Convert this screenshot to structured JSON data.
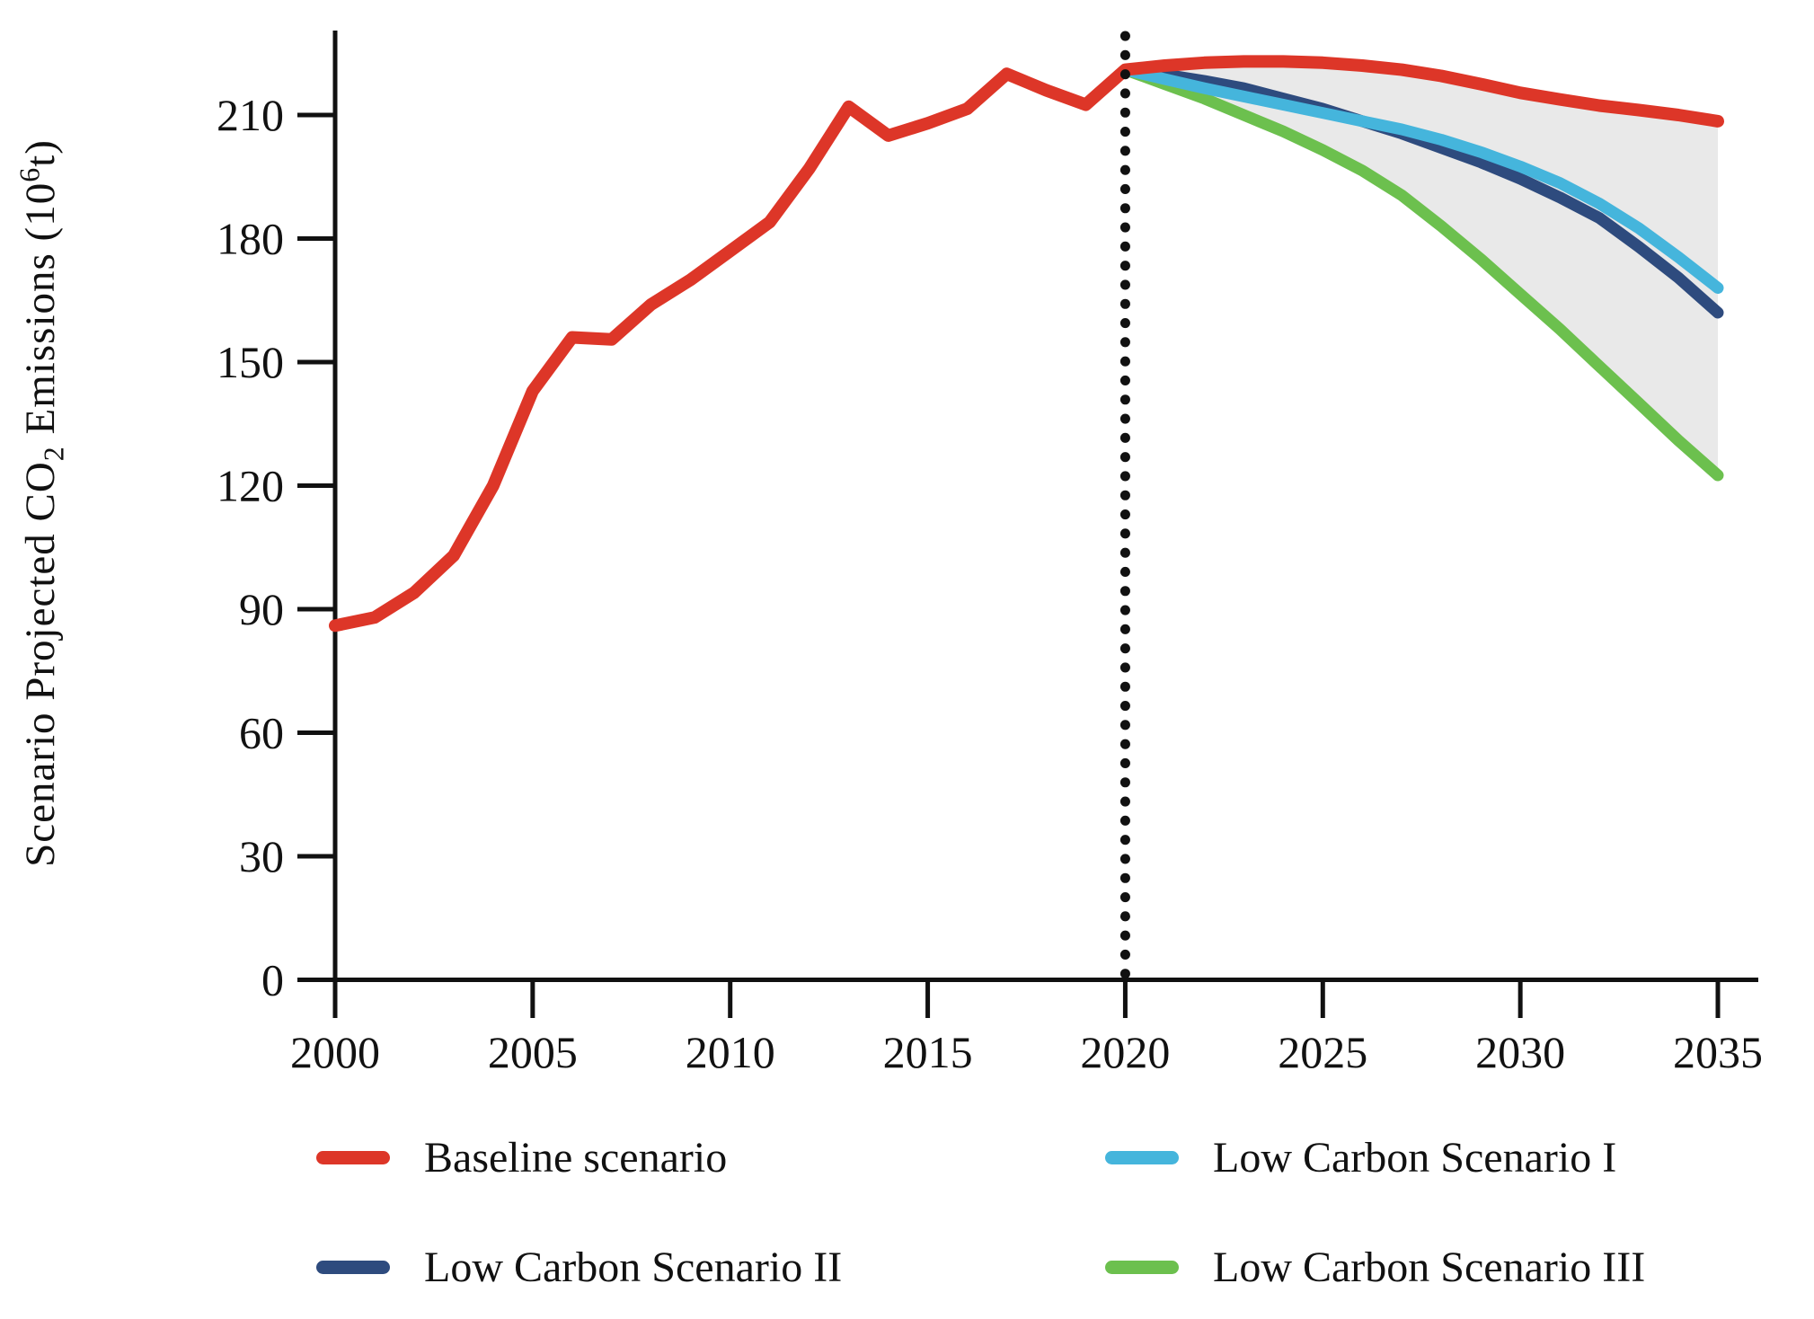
{
  "chart_data": {
    "type": "line",
    "title": "",
    "xlabel": "",
    "ylabel": "Scenario Projected CO2 Emissions (10^6 t)",
    "ylabel_parts": {
      "pre": "Scenario Projected CO",
      "sub": "2",
      "mid": " Emissions (10",
      "sup": "6",
      "post": "t)"
    },
    "xlim": [
      1999,
      2036.5
    ],
    "ylim": [
      0,
      232
    ],
    "xticks": [
      2000,
      2005,
      2010,
      2015,
      2020,
      2025,
      2030,
      2035
    ],
    "yticks": [
      0,
      30,
      60,
      90,
      120,
      150,
      180,
      210
    ],
    "grid": false,
    "divider_line": {
      "x": 2020,
      "style": "dotted",
      "color": "#111111"
    },
    "shaded_band": {
      "upper_series": "Baseline scenario",
      "lower_series": "Low Carbon Scenario III",
      "from": 2020,
      "to": 2035,
      "color": "#E9E9E9"
    },
    "series": [
      {
        "name": "Low Carbon Scenario III",
        "color": "#6CC04E",
        "stroke_width": 13,
        "start_year": 2020,
        "step": 1,
        "values": [
          221,
          217.5,
          214,
          210,
          206,
          201.5,
          196.5,
          190.5,
          183,
          175,
          166.5,
          158,
          149,
          140,
          131,
          122.5
        ]
      },
      {
        "name": "Low Carbon Scenario II",
        "color": "#2E4B7E",
        "stroke_width": 13,
        "start_year": 2020,
        "step": 1,
        "values": [
          221,
          219.8,
          218.3,
          216.5,
          214,
          211.5,
          208.5,
          205.5,
          202,
          198.5,
          194.5,
          190,
          185,
          178,
          170.5,
          162
        ]
      },
      {
        "name": "Low Carbon Scenario I",
        "color": "#45B5DC",
        "stroke_width": 13,
        "start_year": 2020,
        "step": 1,
        "values": [
          221,
          218.7,
          216.5,
          214.5,
          212.5,
          210.5,
          208.5,
          206.5,
          204,
          201,
          197.5,
          193.5,
          188.5,
          182.5,
          175.5,
          168
        ]
      },
      {
        "name": "Baseline scenario",
        "color": "#DD3628",
        "stroke_width": 14,
        "start_year": 2000,
        "step": 1,
        "values": [
          86,
          88,
          94,
          103,
          120,
          143,
          156,
          155.5,
          164,
          170,
          177,
          184,
          197,
          212,
          205,
          208,
          211.5,
          220,
          216,
          212.5,
          221,
          222,
          222.7,
          223,
          223,
          222.7,
          222,
          221,
          219.5,
          217.5,
          215.4,
          213.8,
          212.3,
          211.2,
          210,
          208.5
        ]
      }
    ],
    "legend": {
      "position": "below-chart",
      "items": [
        {
          "label": "Baseline scenario",
          "color": "#DD3628"
        },
        {
          "label": "Low Carbon Scenario I",
          "color": "#45B5DC"
        },
        {
          "label": "Low Carbon Scenario II",
          "color": "#2E4B7E"
        },
        {
          "label": "Low Carbon Scenario III",
          "color": "#6CC04E"
        }
      ]
    }
  }
}
